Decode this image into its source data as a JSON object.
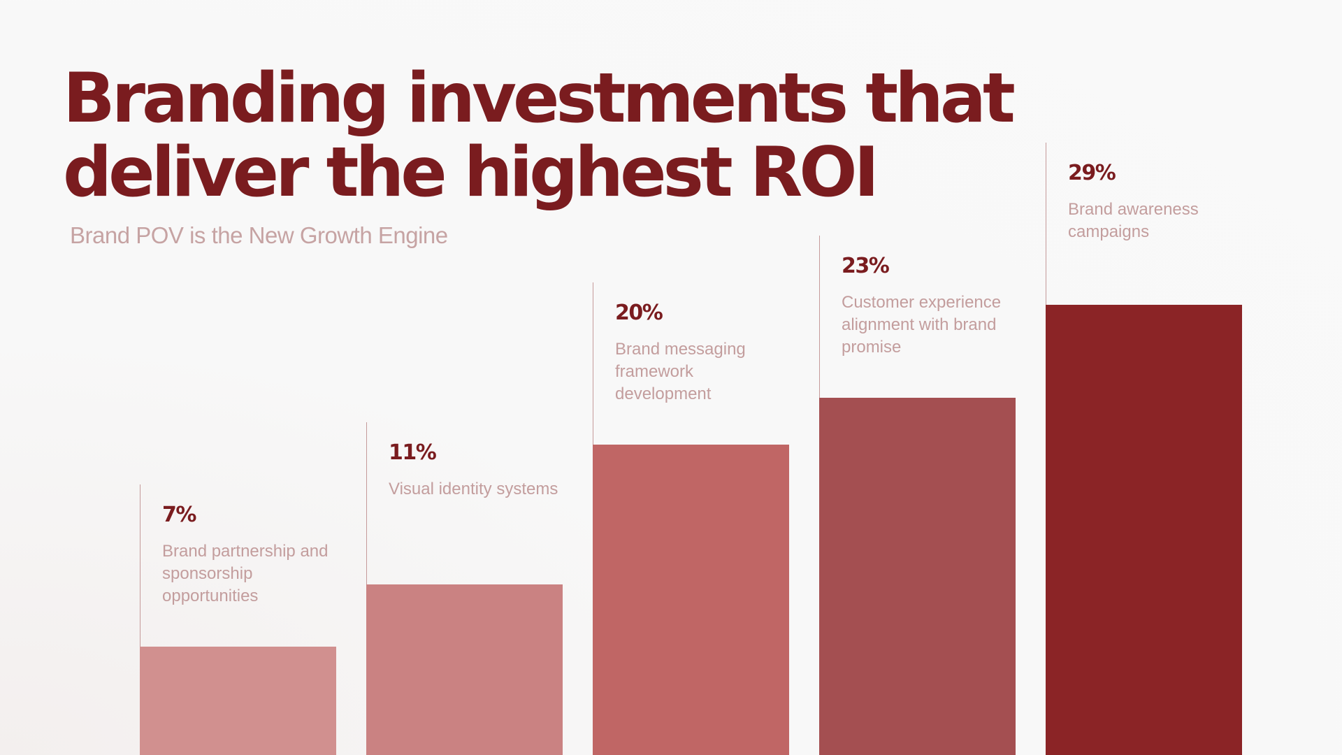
{
  "title": "Branding investments that deliver the highest ROI",
  "subtitle": "Brand POV is the New Growth Engine",
  "chart_data": {
    "type": "bar",
    "title": "Branding investments that deliver the highest ROI",
    "subtitle": "Brand POV is the New Growth Engine",
    "categories": [
      "Brand partnership and sponsorship opportunities",
      "Visual identity systems",
      "Brand messaging framework development",
      "Customer experience alignment  with brand promise",
      "Brand awareness campaigns"
    ],
    "values": [
      7,
      11,
      20,
      23,
      29
    ],
    "value_labels": [
      "7%",
      "11%",
      "20%",
      "23%",
      "29%"
    ],
    "unit": "%",
    "ylim": [
      0,
      29
    ],
    "grid": false,
    "legend": "none",
    "bar_colors": [
      "#d1908f",
      "#ca8282",
      "#c06665",
      "#a44f51",
      "#8b2426"
    ],
    "text_color": "#7a1c1f",
    "label_color": "#c39d9d"
  }
}
